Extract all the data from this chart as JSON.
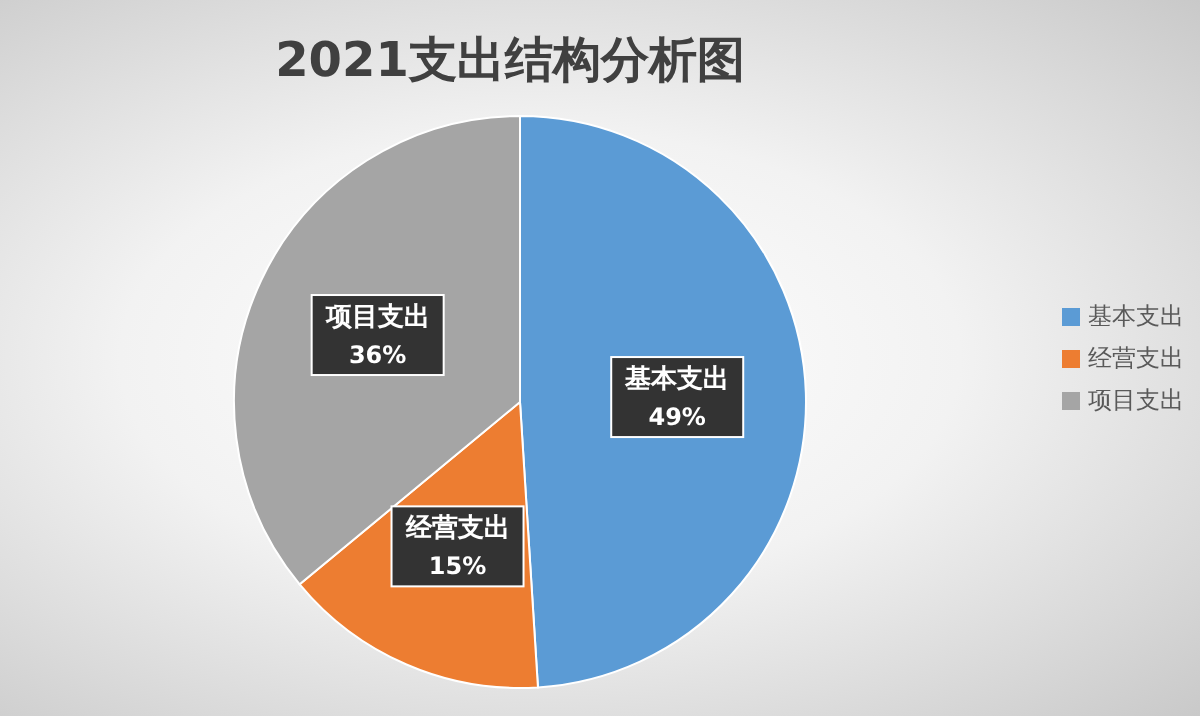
{
  "chart_data": {
    "type": "pie",
    "title": "2021支出结构分析图",
    "categories": [
      "基本支出",
      "经营支出",
      "项目支出"
    ],
    "values": [
      49,
      15,
      36
    ],
    "colors": [
      "#5b9bd5",
      "#ed7d31",
      "#a5a5a5"
    ],
    "value_labels": [
      "49%",
      "15%",
      "36%"
    ],
    "legend": "right"
  }
}
